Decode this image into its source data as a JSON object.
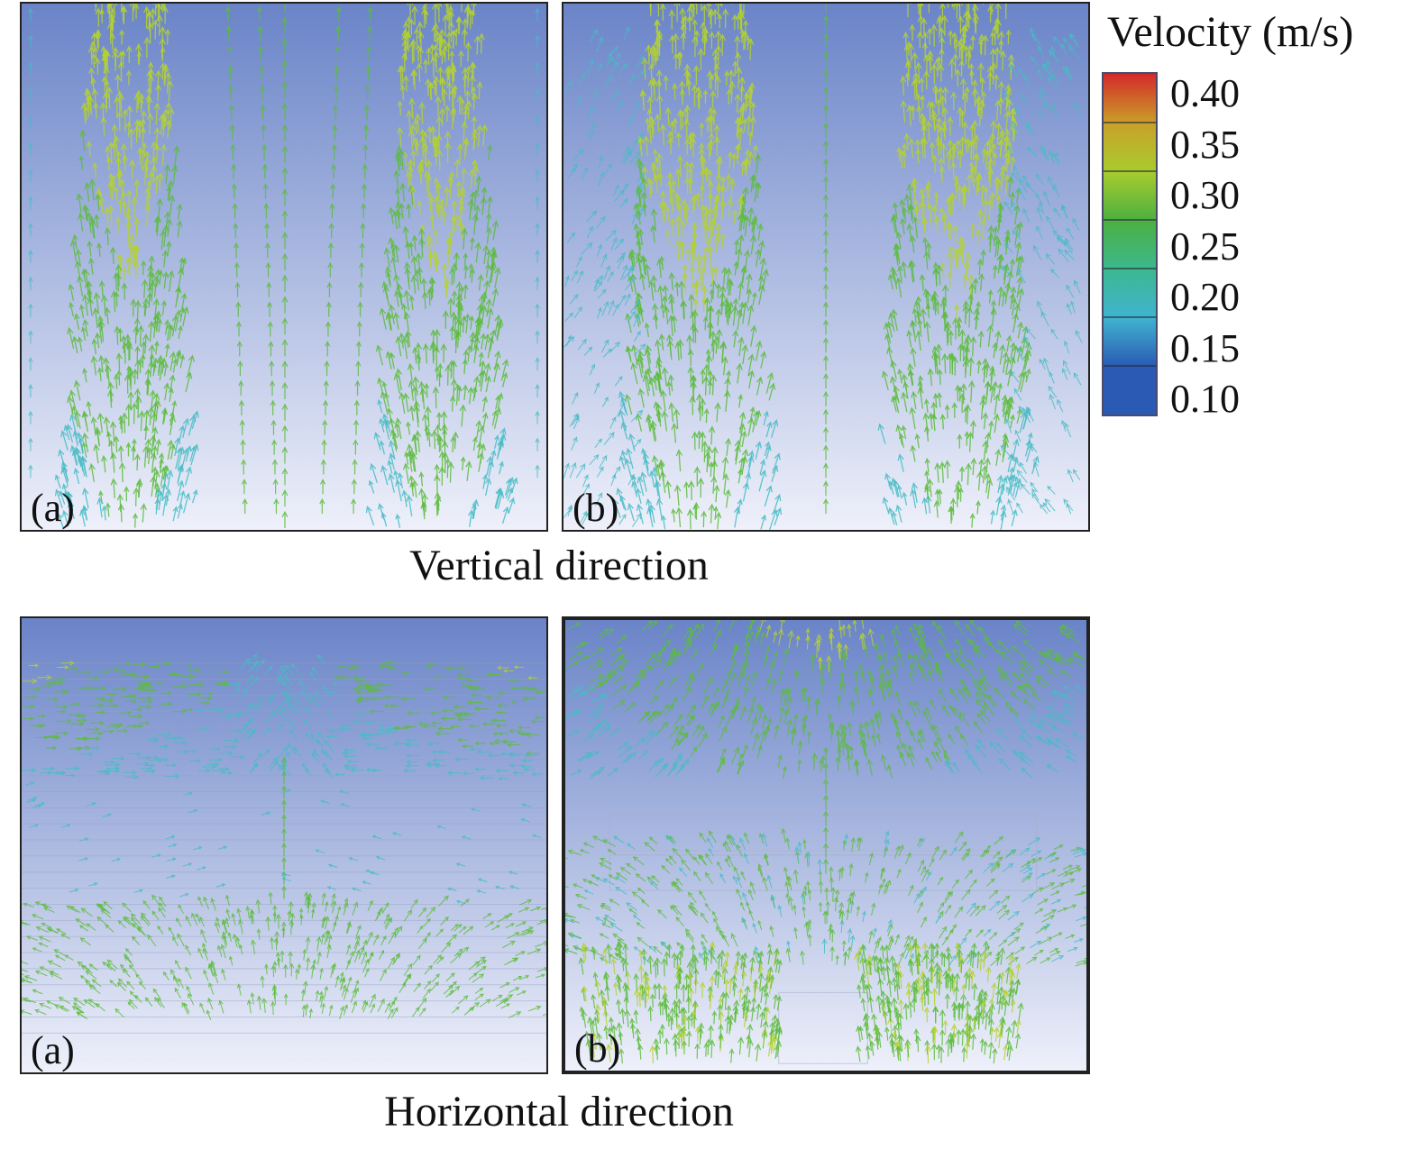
{
  "figure": {
    "captions": {
      "vertical": "Vertical direction",
      "horizontal": "Horizontal direction"
    },
    "panels": [
      {
        "id": "vertical-a",
        "label": "(a)",
        "flow": "vertical",
        "case": "a"
      },
      {
        "id": "vertical-b",
        "label": "(b)",
        "flow": "vertical",
        "case": "b"
      },
      {
        "id": "horizontal-a",
        "label": "(a)",
        "flow": "horizontal",
        "case": "a"
      },
      {
        "id": "horizontal-b",
        "label": "(b)",
        "flow": "horizontal",
        "case": "b"
      }
    ]
  },
  "legend": {
    "title": "Velocity (m/s)",
    "ticks": [
      "0.40",
      "0.35",
      "0.30",
      "0.25",
      "0.20",
      "0.15",
      "0.10"
    ],
    "colors": [
      "#d42a2a",
      "#c9a028",
      "#a8cc2e",
      "#4cb040",
      "#3cb88e",
      "#40b4d0",
      "#2a5ab4"
    ]
  },
  "colors": {
    "background_top": "#6a84c8",
    "background_bottom": "#eef0fa",
    "arrow_high": "#b4d22e",
    "arrow_mid": "#5cbc3c",
    "arrow_low": "#46bcc4"
  }
}
